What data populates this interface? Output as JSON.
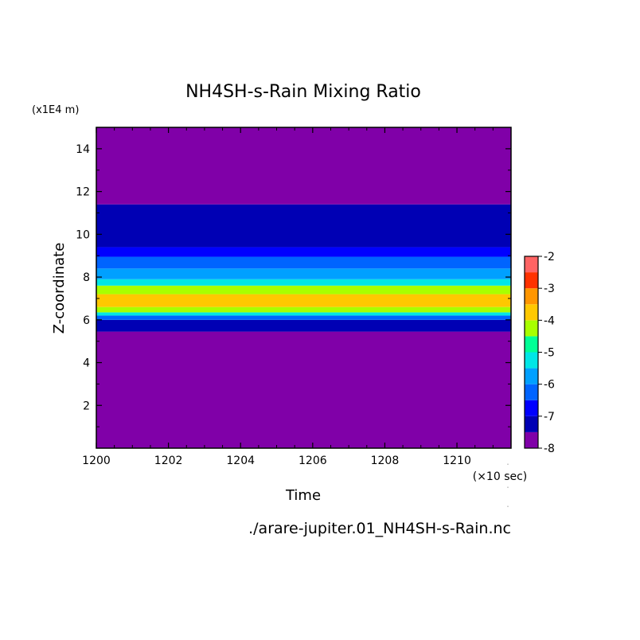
{
  "chart_data": {
    "type": "heatmap",
    "title": "NH4SH-s-Rain Mixing Ratio",
    "xlabel": "Time",
    "ylabel": "Z-coordinate",
    "x_unit": "(×10 sec)",
    "y_unit": "(x1E4 m)",
    "footer": "./arare-jupiter.01_NH4SH-s-Rain.nc",
    "xlim": [
      1200,
      1211.5
    ],
    "ylim": [
      0,
      15
    ],
    "x_ticks": [
      "1200",
      "1202",
      "1204",
      "1206",
      "1208",
      "1210"
    ],
    "y_ticks": [
      "2",
      "4",
      "6",
      "8",
      "10",
      "12",
      "14"
    ],
    "colorbar": {
      "ticks": [
        "-2",
        "-3",
        "-4",
        "-5",
        "-6",
        "-7",
        "-8"
      ],
      "levels": [
        -8,
        -7.5,
        -7,
        -6.5,
        -6,
        -5.5,
        -5,
        -4.5,
        -4,
        -3.5,
        -3,
        -2.5,
        -2
      ],
      "colors": [
        "#8000a8",
        "#0000b4",
        "#0000ff",
        "#0064ff",
        "#00a0ff",
        "#00e6e6",
        "#00ff96",
        "#a8ff00",
        "#ffc800",
        "#ff9600",
        "#ff3200",
        "#ff6464",
        "#ffb4b4"
      ]
    },
    "bands": [
      {
        "z_from": 0,
        "z_to": 5.45,
        "color": "#8000a8"
      },
      {
        "z_from": 5.45,
        "z_to": 6.0,
        "color": "#0000b4"
      },
      {
        "z_from": 6.0,
        "z_to": 6.2,
        "color": "#0064ff"
      },
      {
        "z_from": 6.2,
        "z_to": 6.35,
        "color": "#00e6e6"
      },
      {
        "z_from": 6.35,
        "z_to": 6.6,
        "color": "#a8ff00"
      },
      {
        "z_from": 6.6,
        "z_to": 7.2,
        "color": "#ffc800"
      },
      {
        "z_from": 7.2,
        "z_to": 7.6,
        "color": "#a8ff00"
      },
      {
        "z_from": 7.6,
        "z_to": 7.9,
        "color": "#00e6e6"
      },
      {
        "z_from": 7.9,
        "z_to": 8.4,
        "color": "#00a0ff"
      },
      {
        "z_from": 8.4,
        "z_to": 8.95,
        "color": "#0064ff"
      },
      {
        "z_from": 8.95,
        "z_to": 9.4,
        "color": "#0000ff"
      },
      {
        "z_from": 9.4,
        "z_to": 11.4,
        "color": "#0000b4"
      },
      {
        "z_from": 11.4,
        "z_to": 15,
        "color": "#8000a8"
      }
    ]
  }
}
